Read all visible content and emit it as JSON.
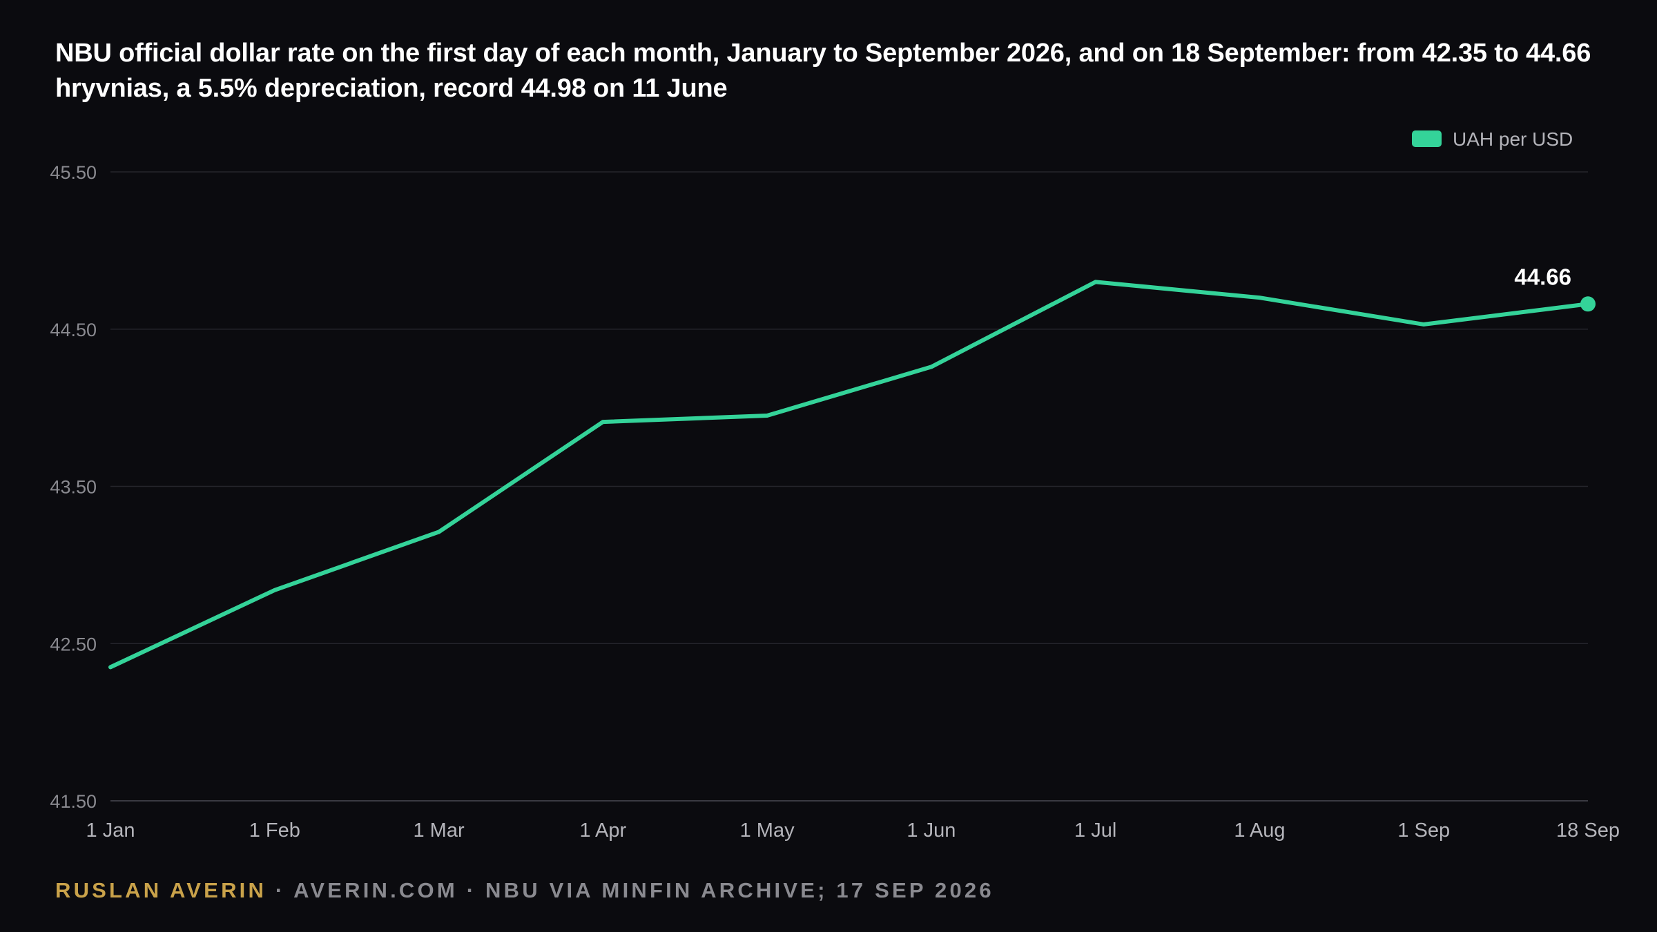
{
  "title": "NBU official dollar rate on the first day of each month, January to September 2026, and on 18 September: from 42.35 to 44.66 hryvnias, a 5.5% depreciation, record 44.98 on 11 June",
  "footer": {
    "author": "RUSLAN AVERIN",
    "separator": "·",
    "site": "AVERIN.COM",
    "source": "NBU VIA MINFIN ARCHIVE; 17 SEP 2026"
  },
  "colors": {
    "background": "#0b0b0f",
    "series": "#34d399",
    "grid": "#26262c",
    "tick_text": "#8a8a90",
    "x_tick_text": "#b4b4ba",
    "footer_accent": "#c9a24a"
  },
  "chart_data": {
    "type": "line",
    "title": "NBU official dollar rate on the first day of each month, January to September 2026, and on 18 September: from 42.35 to 44.66 hryvnias, a 5.5% depreciation, record 44.98 on 11 June",
    "xlabel": "",
    "ylabel": "",
    "categories": [
      "1 Jan",
      "1 Feb",
      "1 Mar",
      "1 Apr",
      "1 May",
      "1 Jun",
      "1 Jul",
      "1 Aug",
      "1 Sep",
      "18 Sep"
    ],
    "series": [
      {
        "name": "UAH per USD",
        "values": [
          42.35,
          42.84,
          43.21,
          43.91,
          43.95,
          44.26,
          44.8,
          44.7,
          44.53,
          44.66
        ]
      }
    ],
    "ylim": [
      41.5,
      45.5
    ],
    "yticks": [
      "41.50",
      "42.50",
      "43.50",
      "44.50",
      "45.50"
    ],
    "end_label": "44.66",
    "grid": true,
    "legend_position": "top-right"
  }
}
